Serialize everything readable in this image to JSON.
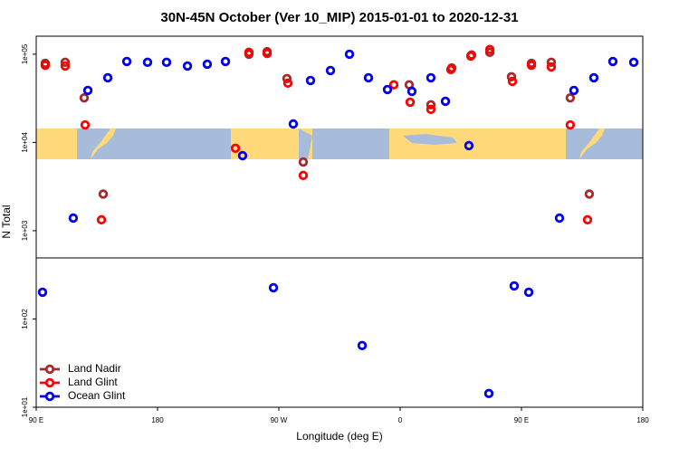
{
  "chart_data": {
    "type": "scatter",
    "title": "30N-45N October (Ver 10_MIP)   2015-01-01 to 2020-12-31",
    "x_label": "Longitude (deg E)",
    "y_label": "N Total",
    "log_y": true,
    "legend": "bottom-left",
    "xlim": [
      90,
      540
    ],
    "ylim": [
      10,
      160000
    ],
    "xticks": [
      {
        "value": 90,
        "label": "90 E"
      },
      180,
      {
        "value": 270,
        "label": "90 W"
      },
      {
        "value": 360,
        "label": "0"
      },
      {
        "value": 450,
        "label": "90 E"
      },
      {
        "value": 540,
        "label": "180"
      }
    ],
    "yticks": [
      {
        "value": 10,
        "label": "1e+01"
      },
      {
        "value": 100,
        "label": "1e+02"
      },
      {
        "value": 1000,
        "label": "1e+03"
      },
      {
        "value": 10000,
        "label": "1e+04"
      },
      {
        "value": 100000,
        "label": "1e+05"
      }
    ],
    "series": [
      {
        "name": "Land Nadir",
        "color": "#a52a2a",
        "x": [
          96.7,
          111.5,
          125.6,
          139.7,
          247.8,
          261.3,
          276,
          288.1,
          366.7,
          382.8,
          398.3,
          413,
          426.5,
          442.6,
          457.4,
          472.1,
          486.2,
          500.3
        ],
        "values": [
          79000,
          81000,
          32000,
          2600,
          100000,
          107000,
          53000,
          6000,
          45000,
          26700,
          70000,
          98000,
          105000,
          55500,
          79000,
          81000,
          32000,
          2600
        ]
      },
      {
        "name": "Land Glint",
        "color": "#ff0000",
        "x": [
          96.7,
          111.5,
          126.3,
          138.4,
          237.8,
          247.8,
          261.3,
          276.7,
          288.1,
          355.3,
          367.4,
          382.8,
          397.6,
          412.4,
          426.5,
          443.3,
          457.4,
          472.1,
          486.2,
          499
        ],
        "values": [
          75000,
          73600,
          15800,
          1330,
          8600,
          105000,
          102000,
          47000,
          4230,
          45000,
          28600,
          23700,
          67000,
          95400,
          113000,
          49200,
          75000,
          71800,
          15800,
          1330
        ]
      },
      {
        "name": "Ocean Glint",
        "color": "#0000ee",
        "x": [
          94.7,
          117.5,
          128.3,
          143.1,
          157.2,
          172.6,
          186.7,
          202.2,
          216.9,
          230.4,
          243.1,
          266,
          280.7,
          293.5,
          308.3,
          322.4,
          331.8,
          336.5,
          350.6,
          368.7,
          382.8,
          393.6,
          411,
          425.8,
          444.6,
          455.4,
          478.2,
          488.9,
          503.7,
          517.8,
          533.3
        ],
        "values": [
          201,
          1390,
          38900,
          54100,
          82800,
          81000,
          81000,
          73600,
          77100,
          82800,
          7090,
          226,
          16200,
          50400,
          65300,
          100000,
          50,
          54100,
          39800,
          37900,
          54100,
          29300,
          9200,
          14.3,
          237,
          201,
          1390,
          38900,
          54100,
          82800,
          81000
        ]
      }
    ]
  }
}
